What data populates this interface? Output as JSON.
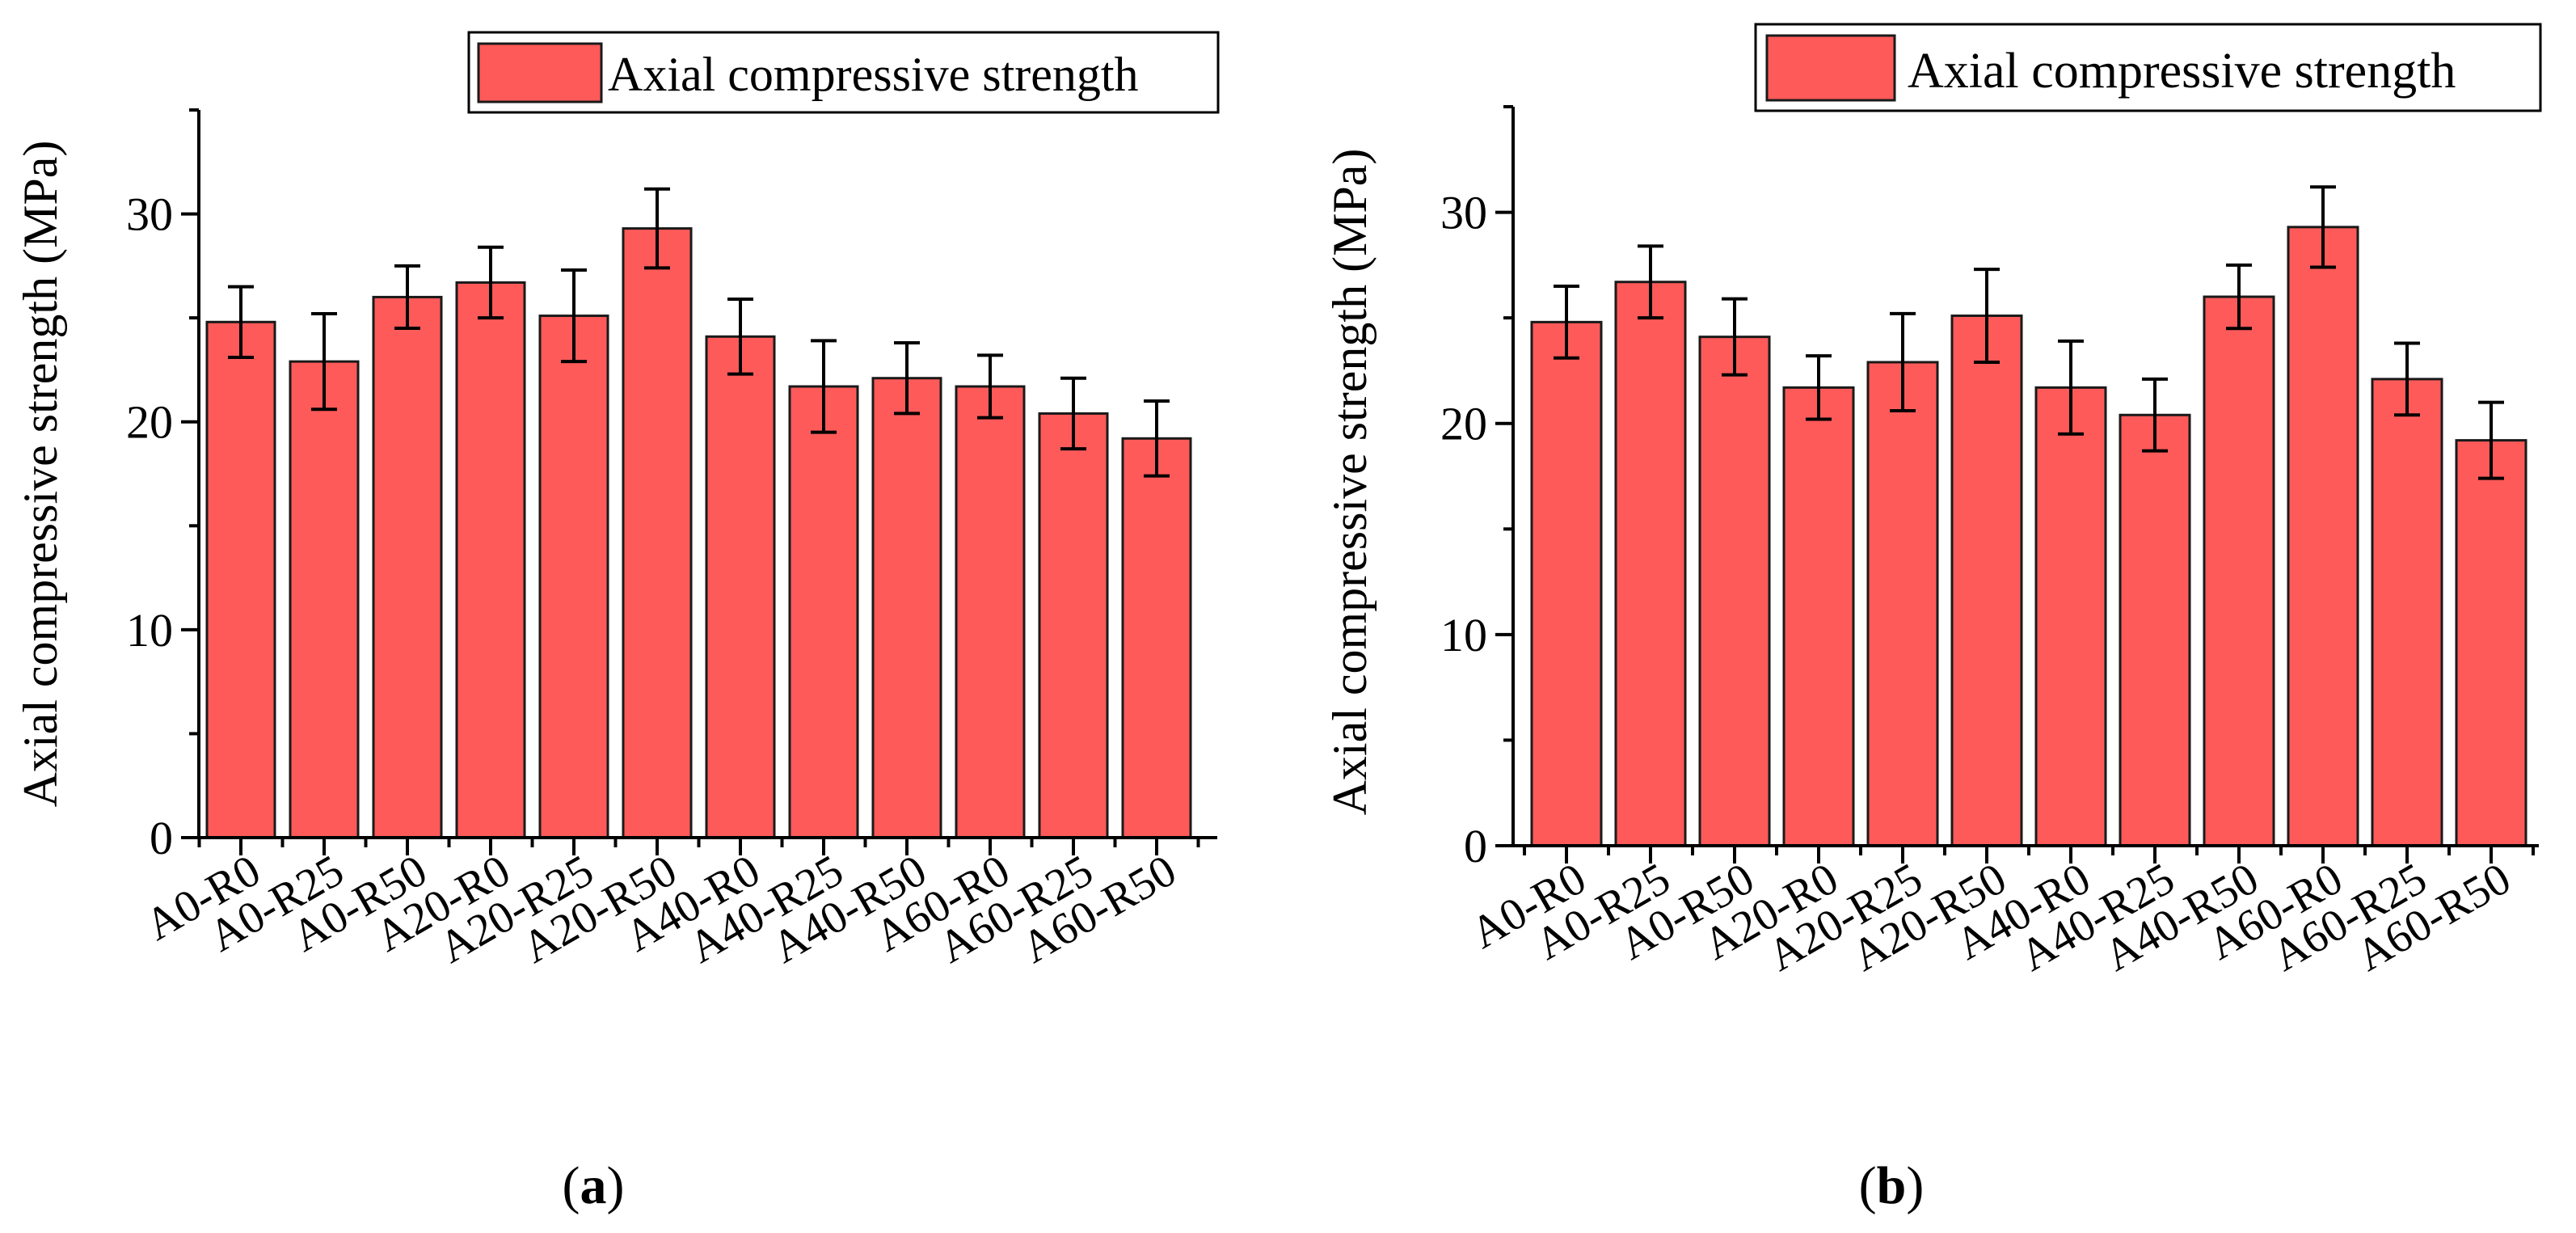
{
  "colors": {
    "bar_fill": "#FF5A5A",
    "bar_stroke": "#1a1a1a",
    "axis": "#000000",
    "background": "#ffffff"
  },
  "chart_data": [
    {
      "type": "bar",
      "panel_label": "a",
      "title": "",
      "ylabel": "Axial compressive strength (MPa)",
      "xlabel": "",
      "ylim": [
        0,
        35
      ],
      "yticks": [
        0,
        10,
        20,
        30
      ],
      "legend": {
        "label": "Axial compressive strength",
        "placement": "top-right"
      },
      "categories": [
        "A0-R0",
        "A0-R25",
        "A0-R50",
        "A20-R0",
        "A20-R25",
        "A20-R50",
        "A40-R0",
        "A40-R25",
        "A40-R50",
        "A60-R0",
        "A60-R25",
        "A60-R50"
      ],
      "values": [
        24.8,
        22.9,
        26.0,
        26.7,
        25.1,
        29.3,
        24.1,
        21.7,
        22.1,
        21.7,
        20.4,
        19.2
      ],
      "errors": [
        1.7,
        2.3,
        1.5,
        1.7,
        2.2,
        1.9,
        1.8,
        2.2,
        1.7,
        1.5,
        1.7,
        1.8
      ]
    },
    {
      "type": "bar",
      "panel_label": "b",
      "title": "",
      "ylabel": "Axial compressive strength (MPa)",
      "xlabel": "",
      "ylim": [
        0,
        35
      ],
      "yticks": [
        0,
        10,
        20,
        30
      ],
      "legend": {
        "label": "Axial compressive strength",
        "placement": "top-right"
      },
      "categories": [
        "A0-R0",
        "A0-R25",
        "A0-R50",
        "A20-R0",
        "A20-R25",
        "A20-R50",
        "A40-R0",
        "A40-R25",
        "A40-R50",
        "A60-R0",
        "A60-R25",
        "A60-R50"
      ],
      "values": [
        24.8,
        26.7,
        24.1,
        21.7,
        22.9,
        25.1,
        21.7,
        20.4,
        26.0,
        29.3,
        22.1,
        19.2
      ],
      "errors": [
        1.7,
        1.7,
        1.8,
        1.5,
        2.3,
        2.2,
        2.2,
        1.7,
        1.5,
        1.9,
        1.7,
        1.8
      ]
    }
  ]
}
